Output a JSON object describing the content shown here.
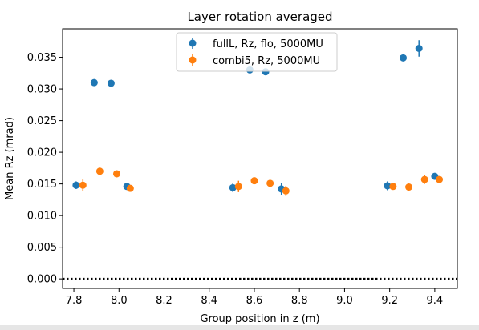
{
  "chart_data": {
    "type": "scatter",
    "title": "Layer rotation averaged",
    "xlabel": "Group position in z (m)",
    "ylabel": "Mean Rz (mrad)",
    "xlim": [
      7.75,
      9.5
    ],
    "ylim": [
      -0.0015,
      0.0395
    ],
    "xticks": [
      7.8,
      8.0,
      8.2,
      8.4,
      8.6,
      8.8,
      9.0,
      9.2,
      9.4
    ],
    "xtick_labels": [
      "7.8",
      "8.0",
      "8.2",
      "8.4",
      "8.6",
      "8.8",
      "9.0",
      "9.2",
      "9.4"
    ],
    "yticks": [
      0.0,
      0.005,
      0.01,
      0.015,
      0.02,
      0.025,
      0.03,
      0.035
    ],
    "ytick_labels": [
      "0.000",
      "0.005",
      "0.010",
      "0.015",
      "0.020",
      "0.025",
      "0.030",
      "0.035"
    ],
    "grid": false,
    "legend_position": "top-center",
    "reference_line": {
      "y": 0.0,
      "style": "dotted",
      "color": "#000000"
    },
    "series": [
      {
        "name": "fullL, Rz, flo, 5000MU",
        "color": "#1f77b4",
        "points": [
          {
            "x": 7.81,
            "y": 0.0148,
            "err": 0.0006
          },
          {
            "x": 7.89,
            "y": 0.031,
            "err": 0.0003
          },
          {
            "x": 7.965,
            "y": 0.0309,
            "err": 0.0004
          },
          {
            "x": 8.035,
            "y": 0.0146,
            "err": 0.0003
          },
          {
            "x": 8.505,
            "y": 0.0144,
            "err": 0.0007
          },
          {
            "x": 8.58,
            "y": 0.033,
            "err": 0.0004
          },
          {
            "x": 8.65,
            "y": 0.0327,
            "err": 0.0004
          },
          {
            "x": 8.72,
            "y": 0.0142,
            "err": 0.0009
          },
          {
            "x": 9.19,
            "y": 0.0147,
            "err": 0.0007
          },
          {
            "x": 9.26,
            "y": 0.0349,
            "err": 0.0003
          },
          {
            "x": 9.33,
            "y": 0.0364,
            "err": 0.0013
          },
          {
            "x": 9.4,
            "y": 0.0162,
            "err": 0.0003
          }
        ]
      },
      {
        "name": "combi5, Rz, 5000MU",
        "color": "#ff7f0e",
        "points": [
          {
            "x": 7.84,
            "y": 0.0148,
            "err": 0.0009
          },
          {
            "x": 7.915,
            "y": 0.017,
            "err": 0.0004
          },
          {
            "x": 7.99,
            "y": 0.0166,
            "err": 0.0003
          },
          {
            "x": 8.05,
            "y": 0.0143,
            "err": 0.0003
          },
          {
            "x": 8.53,
            "y": 0.0146,
            "err": 0.0009
          },
          {
            "x": 8.6,
            "y": 0.0155,
            "err": 0.0004
          },
          {
            "x": 8.67,
            "y": 0.0151,
            "err": 0.0004
          },
          {
            "x": 8.74,
            "y": 0.0139,
            "err": 0.0008
          },
          {
            "x": 9.215,
            "y": 0.0146,
            "err": 0.0005
          },
          {
            "x": 9.285,
            "y": 0.0145,
            "err": 0.0005
          },
          {
            "x": 9.355,
            "y": 0.0157,
            "err": 0.0007
          },
          {
            "x": 9.42,
            "y": 0.0157,
            "err": 0.0005
          }
        ]
      }
    ]
  }
}
